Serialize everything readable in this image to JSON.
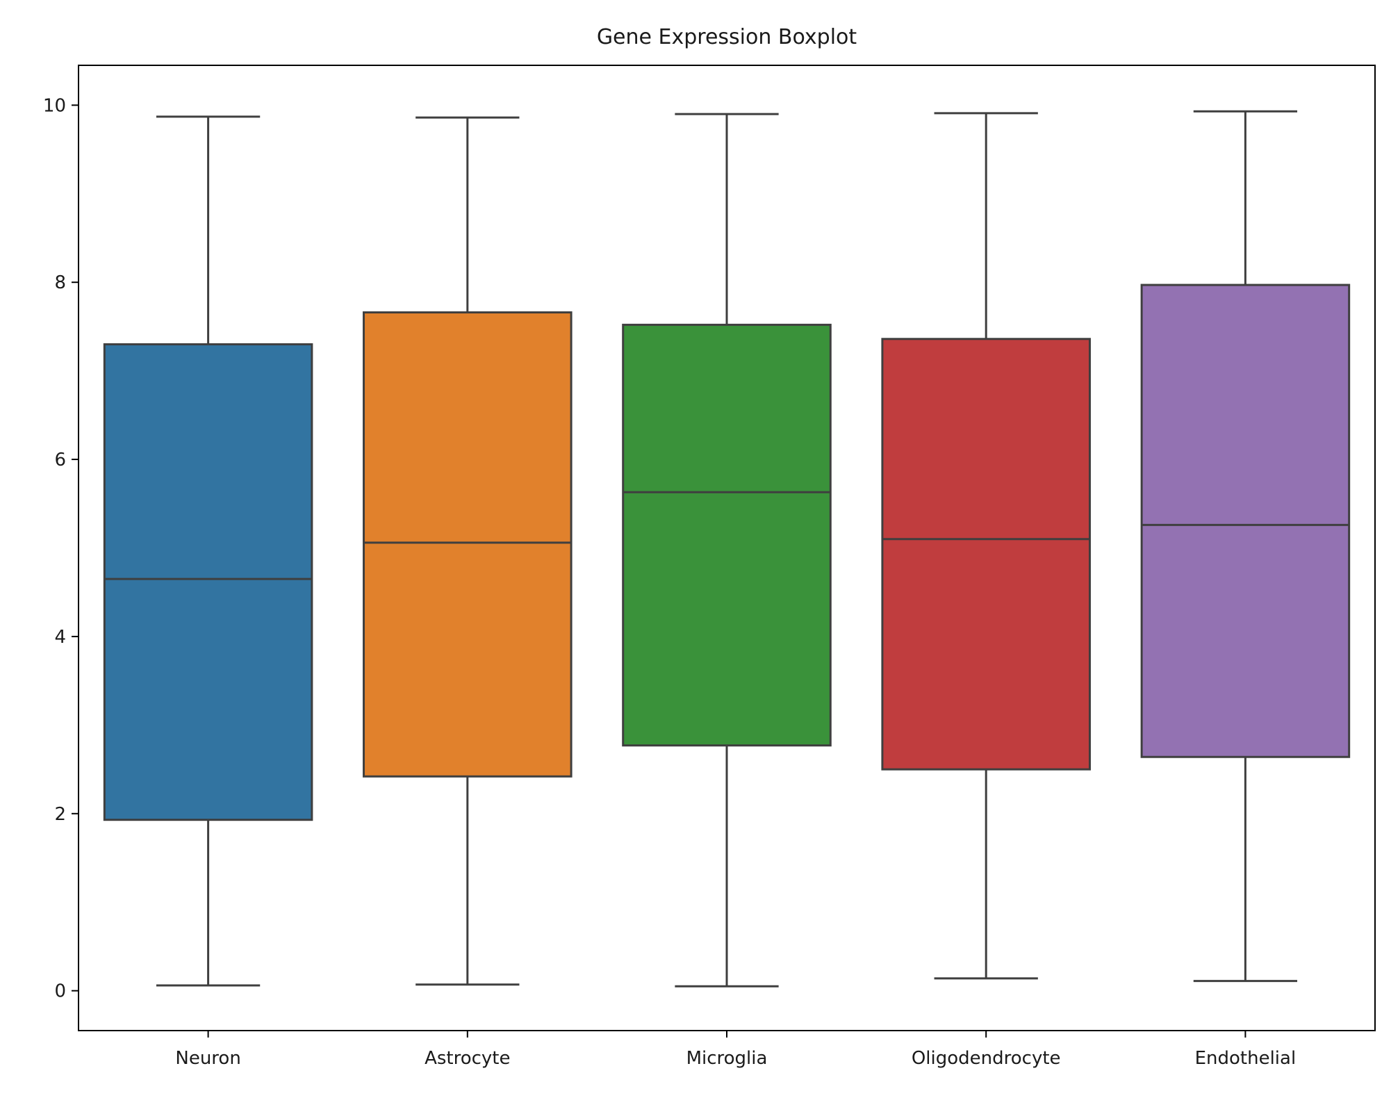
{
  "chart_data": {
    "type": "boxplot",
    "title": "Gene Expression Boxplot",
    "xlabel": "",
    "ylabel": "",
    "ylim": [
      -0.45,
      10.45
    ],
    "yticks": [
      0,
      2,
      4,
      6,
      8,
      10
    ],
    "ytick_labels": [
      "0",
      "2",
      "4",
      "6",
      "8",
      "10"
    ],
    "grid": false,
    "legend": "none",
    "line_color": "#3f3f3f",
    "categories": [
      "Neuron",
      "Astrocyte",
      "Microglia",
      "Oligodendrocyte",
      "Endothelial"
    ],
    "boxes": [
      {
        "name": "Neuron",
        "color": "#3274a1",
        "whisker_low": 0.06,
        "q1": 1.93,
        "median": 4.65,
        "q3": 7.3,
        "whisker_high": 9.87
      },
      {
        "name": "Astrocyte",
        "color": "#e1812c",
        "whisker_low": 0.07,
        "q1": 2.42,
        "median": 5.06,
        "q3": 7.66,
        "whisker_high": 9.86
      },
      {
        "name": "Microglia",
        "color": "#3a923a",
        "whisker_low": 0.05,
        "q1": 2.77,
        "median": 5.63,
        "q3": 7.52,
        "whisker_high": 9.9
      },
      {
        "name": "Oligodendrocyte",
        "color": "#c03d3e",
        "whisker_low": 0.14,
        "q1": 2.5,
        "median": 5.1,
        "q3": 7.36,
        "whisker_high": 9.91
      },
      {
        "name": "Endothelial",
        "color": "#9372b2",
        "whisker_low": 0.11,
        "q1": 2.64,
        "median": 5.26,
        "q3": 7.97,
        "whisker_high": 9.93
      }
    ]
  }
}
